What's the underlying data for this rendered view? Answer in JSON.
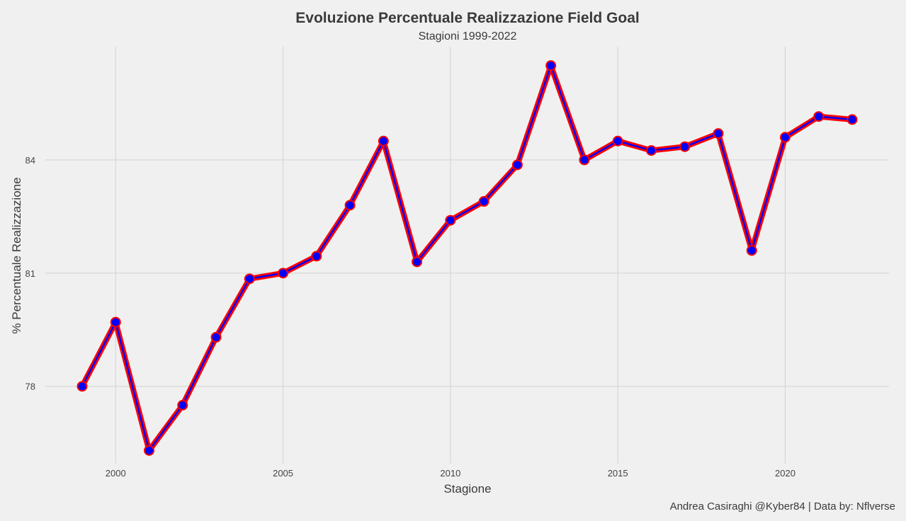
{
  "chart_data": {
    "type": "line",
    "title": "Evoluzione Percentuale Realizzazione Field Goal",
    "subtitle": "Stagioni 1999-2022",
    "xlabel": "Stagione",
    "ylabel": "% Percentuale Realizzazione",
    "caption": "Andrea Casiraghi @Kyber84 | Data by: Nflverse",
    "x": [
      1999,
      2000,
      2001,
      2002,
      2003,
      2004,
      2005,
      2006,
      2007,
      2008,
      2009,
      2010,
      2011,
      2012,
      2013,
      2014,
      2015,
      2016,
      2017,
      2018,
      2019,
      2020,
      2021,
      2022
    ],
    "values": [
      78.0,
      79.7,
      76.3,
      77.5,
      79.3,
      80.85,
      81.0,
      81.45,
      82.8,
      84.5,
      81.3,
      82.4,
      82.9,
      83.87,
      86.5,
      84.0,
      84.5,
      84.25,
      84.35,
      84.7,
      81.6,
      84.6,
      85.15,
      85.07
    ],
    "x_ticks": [
      2000,
      2005,
      2010,
      2015,
      2020
    ],
    "y_ticks": [
      78,
      81,
      84
    ],
    "xlim": [
      1997.9,
      2023.1
    ],
    "ylim": [
      75.95,
      87.0
    ],
    "grid": true,
    "line_color": "#0000ff",
    "line_outline_color": "#ff0000",
    "point_fill": "#0000ff",
    "point_stroke": "#ff0000"
  }
}
